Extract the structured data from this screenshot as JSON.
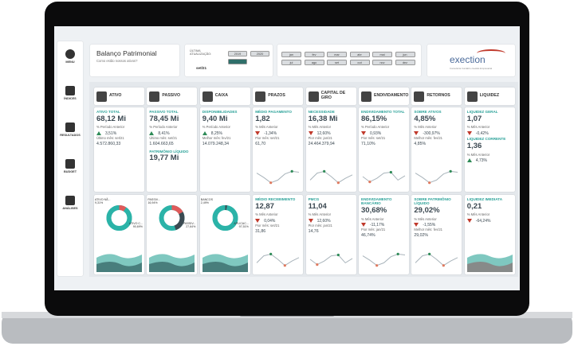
{
  "header": {
    "title": "Balanço Patrimonial",
    "subtitle": "Como estão nossos ativos?",
    "update_label": "ÚLTIMA ATUALIZAÇÃO:",
    "update_value": "set/21",
    "years": [
      "2019",
      "2020",
      "2021"
    ],
    "selected_year": 2,
    "months": [
      "jan",
      "fev",
      "mar",
      "abr",
      "mai",
      "jun",
      "jul",
      "ago",
      "set",
      "out",
      "nov",
      "dez"
    ],
    "logo": "exection",
    "logo_tagline": "Consultoria Contábil e Gestão Empresarial"
  },
  "menu": [
    "MENU",
    "ÍNDICES",
    "RESULTADOS",
    "BUDGET",
    "ANÁLISES"
  ],
  "columns": [
    {
      "title": "ATIVO",
      "cards": [
        {
          "items": [
            {
              "text": "ATIVO TOTAL",
              "kind": "label"
            },
            {
              "text": "68,12 Mi",
              "kind": "value"
            },
            {
              "text": "% Período Anterior",
              "kind": "note"
            },
            {
              "text": "3,51%",
              "kind": "up"
            },
            {
              "text": "Último mês: set/21",
              "kind": "note"
            },
            {
              "text": "4.572.860,33",
              "kind": "figure"
            }
          ]
        },
        {
          "donut": [
            {
              "label": "ATIVO NÃ...",
              "value": 9.31,
              "value_label": "9,31%",
              "color": "#e05a5a"
            },
            {
              "label": "ATIVO C...",
              "value": 90.69,
              "value_label": "90,69%",
              "color": "#2bb3a8"
            }
          ]
        }
      ]
    },
    {
      "title": "PASSIVO",
      "cards": [
        {
          "items": [
            {
              "text": "PASSIVO TOTAL",
              "kind": "label"
            },
            {
              "text": "78,45 Mi",
              "kind": "value"
            },
            {
              "text": "% Período Anterior",
              "kind": "note"
            },
            {
              "text": "8,41%",
              "kind": "up"
            },
            {
              "text": "Último mês: set/21",
              "kind": "note"
            },
            {
              "text": "1.604.663,65",
              "kind": "figure"
            },
            {
              "text": "PATRIMÔNIO LÍQUIDO",
              "kind": "label"
            },
            {
              "text": "19,77 Mi",
              "kind": "value"
            }
          ]
        },
        {
          "donut": [
            {
              "label": "PASSIV...",
              "value": 16.94,
              "value_label": "16,94%",
              "color": "#e05a5a"
            },
            {
              "label": "PASSIV...",
              "value": 27.64,
              "value_label": "27,64%",
              "color": "#3b4a52"
            }
          ]
        }
      ]
    },
    {
      "title": "CAIXA",
      "cards": [
        {
          "items": [
            {
              "text": "DISPONIBILIDADES",
              "kind": "label"
            },
            {
              "text": "9,40 Mi",
              "kind": "value"
            },
            {
              "text": "% Período Anterior",
              "kind": "note"
            },
            {
              "text": "8,25%",
              "kind": "up"
            },
            {
              "text": "Melhor mês: fev/21",
              "kind": "note"
            },
            {
              "text": "14.079.248,34",
              "kind": "figure"
            }
          ]
        },
        {
          "donut": [
            {
              "label": "BANCOS",
              "value": 2.49,
              "value_label": "2,49%",
              "color": "#3b4a52"
            },
            {
              "label": "APLICAC...",
              "value": 97.51,
              "value_label": "97,51%",
              "color": "#2bb3a8"
            }
          ]
        }
      ]
    },
    {
      "title": "PRAZOS",
      "cards": [
        {
          "items": [
            {
              "text": "MÉDIO PAGAMENTO",
              "kind": "label"
            },
            {
              "text": "1,82",
              "kind": "value"
            },
            {
              "text": "% Mês Anterior",
              "kind": "note"
            },
            {
              "text": "-1,34%",
              "kind": "down"
            },
            {
              "text": "Pior mês: set/21",
              "kind": "note"
            },
            {
              "text": "61,70",
              "kind": "figure"
            }
          ],
          "spark": true
        },
        {
          "items": [
            {
              "text": "MÉDIO RECEBIMENTO",
              "kind": "label"
            },
            {
              "text": "12,87",
              "kind": "value"
            },
            {
              "text": "% Mês Anterior",
              "kind": "note"
            },
            {
              "text": "0,04%",
              "kind": "down"
            },
            {
              "text": "Pior mês: set/21",
              "kind": "note"
            },
            {
              "text": "31,86",
              "kind": "figure"
            }
          ],
          "spark": true
        }
      ]
    },
    {
      "title": "CAPITAL DE GIRO",
      "cards": [
        {
          "items": [
            {
              "text": "NECESSIDADE",
              "kind": "label"
            },
            {
              "text": "16,38 Mi",
              "kind": "value"
            },
            {
              "text": "% Mês Anterior",
              "kind": "note"
            },
            {
              "text": "12,60%",
              "kind": "down"
            },
            {
              "text": "Pior mês: jan/21",
              "kind": "note"
            },
            {
              "text": "24.464.379,94",
              "kind": "figure"
            }
          ],
          "spark": true
        },
        {
          "items": [
            {
              "text": "PMCG",
              "kind": "label"
            },
            {
              "text": "11,04",
              "kind": "value"
            },
            {
              "text": "% Mês Anterior",
              "kind": "note"
            },
            {
              "text": "12,60%",
              "kind": "down"
            },
            {
              "text": "Pior mês: jan/21",
              "kind": "note"
            },
            {
              "text": "14,76",
              "kind": "figure"
            }
          ],
          "spark": true
        }
      ]
    },
    {
      "title": "ENDIVIDAMENTO",
      "cards": [
        {
          "items": [
            {
              "text": "ENDIVIDAMENTO TOTAL",
              "kind": "label"
            },
            {
              "text": "86,15%",
              "kind": "value"
            },
            {
              "text": "% Período Anterior",
              "kind": "note"
            },
            {
              "text": "0,93%",
              "kind": "down"
            },
            {
              "text": "Pior mês: set/21",
              "kind": "note"
            },
            {
              "text": "71,10%",
              "kind": "figure"
            }
          ],
          "spark": true
        },
        {
          "items": [
            {
              "text": "ENDIVIDAMENTO BANCÁRIO",
              "kind": "label"
            },
            {
              "text": "30,68%",
              "kind": "value"
            },
            {
              "text": "% Mês Anterior",
              "kind": "note"
            },
            {
              "text": "-11,17%",
              "kind": "down"
            },
            {
              "text": "Pior mês: jan/21",
              "kind": "note"
            },
            {
              "text": "46,74%",
              "kind": "figure"
            }
          ],
          "spark": true
        }
      ]
    },
    {
      "title": "RETORNOS",
      "cards": [
        {
          "items": [
            {
              "text": "SOBRE ATIVOS",
              "kind": "label"
            },
            {
              "text": "4,85%",
              "kind": "value"
            },
            {
              "text": "% Mês Anterior",
              "kind": "note"
            },
            {
              "text": "-300,97%",
              "kind": "down"
            },
            {
              "text": "Melhor mês: fev/21",
              "kind": "note"
            },
            {
              "text": "4,85%",
              "kind": "figure"
            }
          ],
          "spark": true
        },
        {
          "items": [
            {
              "text": "SOBRE PATRIMÔNIO LÍQUIDO",
              "kind": "label"
            },
            {
              "text": "29,02%",
              "kind": "value"
            },
            {
              "text": "% Mês Anterior",
              "kind": "note"
            },
            {
              "text": "-1,55%",
              "kind": "down"
            },
            {
              "text": "Melhor mês: fev/21",
              "kind": "note"
            },
            {
              "text": "29,02%",
              "kind": "figure"
            }
          ],
          "spark": true
        }
      ]
    },
    {
      "title": "LIQUIDEZ",
      "cards": [
        {
          "items": [
            {
              "text": "LIQUIDEZ GERAL",
              "kind": "label"
            },
            {
              "text": "1,07",
              "kind": "value"
            },
            {
              "text": "% Mês Anterior",
              "kind": "note"
            },
            {
              "text": "-0,42%",
              "kind": "down"
            },
            {
              "text": "LIQUIDEZ CORRENTE",
              "kind": "label"
            },
            {
              "text": "1,36",
              "kind": "value"
            },
            {
              "text": "% Mês Anterior",
              "kind": "note"
            },
            {
              "text": "4,73%",
              "kind": "up"
            }
          ]
        },
        {
          "items": [
            {
              "text": "LIQUIDEZ IMEDIATA",
              "kind": "label"
            },
            {
              "text": "0,21",
              "kind": "value"
            },
            {
              "text": "% Mês Anterior",
              "kind": "note"
            },
            {
              "text": "-64,24%",
              "kind": "down"
            }
          ],
          "area": true
        }
      ]
    }
  ]
}
